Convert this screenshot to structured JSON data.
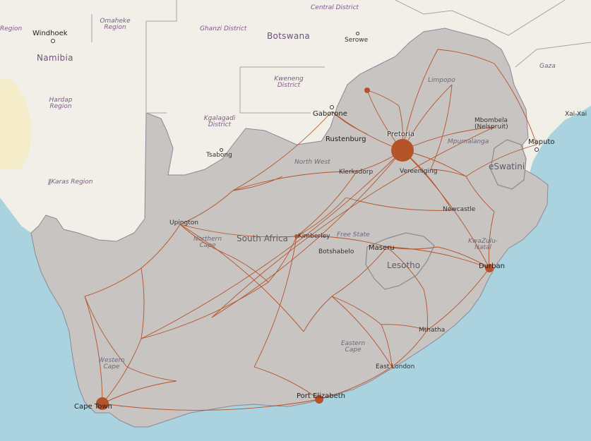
{
  "map": {
    "colors": {
      "ocean": "#aad3df",
      "land": "#f2efe9",
      "desert": "#f5ecc9",
      "sa_overlay": "#c8c4c2",
      "routes": "#b5532a",
      "borders": "#a8a0b0"
    },
    "countries": [
      {
        "id": "namibia",
        "label": "Namibia"
      },
      {
        "id": "botswana",
        "label": "Botswana"
      },
      {
        "id": "south-africa",
        "label": "South Africa"
      },
      {
        "id": "lesotho",
        "label": "Lesotho"
      },
      {
        "id": "eswatini",
        "label": "eSwatini"
      }
    ],
    "regions": [
      {
        "id": "region-left",
        "label": "Region"
      },
      {
        "id": "omaheke",
        "label": "Omaheke\nRegion"
      },
      {
        "id": "ghanzi",
        "label": "Ghanzi District"
      },
      {
        "id": "central",
        "label": "Central District"
      },
      {
        "id": "hardap",
        "label": "Hardap\nRegion"
      },
      {
        "id": "kweneng",
        "label": "Kweneng\nDistrict"
      },
      {
        "id": "kgalagadi",
        "label": "Kgalagadi\nDistrict"
      },
      {
        "id": "ikaros",
        "label": "ǁKaras Region"
      },
      {
        "id": "limpopo",
        "label": "Limpopo"
      },
      {
        "id": "mpumalanga",
        "label": "Mpumalanga"
      },
      {
        "id": "north-west",
        "label": "North West"
      },
      {
        "id": "free-state",
        "label": "Free State"
      },
      {
        "id": "northern-cape",
        "label": "Northern\nCape"
      },
      {
        "id": "kzn",
        "label": "KwaZulu-\nNatal"
      },
      {
        "id": "eastern-cape",
        "label": "Eastern\nCape"
      },
      {
        "id": "western-cape",
        "label": "Western\nCape"
      },
      {
        "id": "gaza",
        "label": "Gaza"
      }
    ],
    "cities": [
      {
        "id": "windhoek",
        "label": "Windhoek"
      },
      {
        "id": "serowe",
        "label": "Serowe"
      },
      {
        "id": "gaborone",
        "label": "Gaborone"
      },
      {
        "id": "tsabong",
        "label": "Tsabong"
      },
      {
        "id": "rustenburg",
        "label": "Rustenburg"
      },
      {
        "id": "pretoria",
        "label": "Pretoria"
      },
      {
        "id": "mbombela",
        "label": "Mbombela\n(Nelspruit)"
      },
      {
        "id": "maputo",
        "label": "Maputo"
      },
      {
        "id": "xai-xai",
        "label": "Xai-Xai"
      },
      {
        "id": "klerksdorp",
        "label": "Klerksdorp"
      },
      {
        "id": "vereeniging",
        "label": "Vereeniging"
      },
      {
        "id": "newcastle",
        "label": "Newcastle"
      },
      {
        "id": "upington",
        "label": "Upington"
      },
      {
        "id": "kimberley",
        "label": "Kimberley"
      },
      {
        "id": "botshabelo",
        "label": "Botshabelo"
      },
      {
        "id": "maseru",
        "label": "Maseru"
      },
      {
        "id": "durban",
        "label": "Durban"
      },
      {
        "id": "mthatha",
        "label": "Mthatha"
      },
      {
        "id": "east-london",
        "label": "East London"
      },
      {
        "id": "port-elizabeth",
        "label": "Port Elizabeth"
      },
      {
        "id": "cape-town",
        "label": "Cape Town"
      }
    ]
  }
}
